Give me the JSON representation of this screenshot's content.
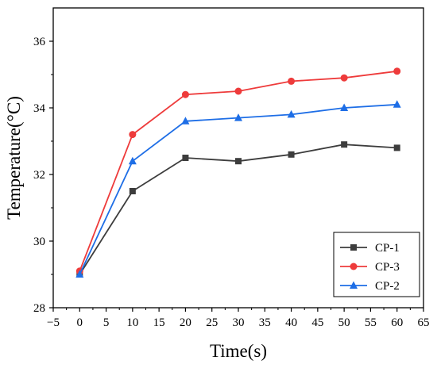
{
  "chart_data": {
    "type": "line",
    "xlabel": "Time(s)",
    "ylabel": "Temperature(°C)",
    "xlim": [
      -5,
      65
    ],
    "ylim": [
      28,
      37
    ],
    "x_ticks": [
      -5,
      0,
      5,
      10,
      15,
      20,
      25,
      30,
      35,
      40,
      45,
      50,
      55,
      60,
      65
    ],
    "y_ticks": [
      28,
      30,
      32,
      34,
      36
    ],
    "x_tick_labels": [
      "−5",
      "0",
      "5",
      "10",
      "15",
      "20",
      "25",
      "30",
      "35",
      "40",
      "45",
      "50",
      "55",
      "60",
      "65"
    ],
    "y_tick_labels": [
      "28",
      "30",
      "32",
      "34",
      "36"
    ],
    "x": [
      0,
      10,
      20,
      30,
      40,
      50,
      60
    ],
    "series": [
      {
        "name": "CP-1",
        "color": "#3d3d3d",
        "marker": "square",
        "values": [
          29.0,
          31.5,
          32.5,
          32.4,
          32.6,
          32.9,
          32.8
        ]
      },
      {
        "name": "CP-3",
        "color": "#ee3b3b",
        "marker": "circle",
        "values": [
          29.1,
          33.2,
          34.4,
          34.5,
          34.8,
          34.9,
          35.1
        ]
      },
      {
        "name": "CP-2",
        "color": "#1e6ee6",
        "marker": "triangle",
        "values": [
          29.0,
          32.4,
          33.6,
          33.7,
          33.8,
          34.0,
          34.1
        ]
      }
    ],
    "legend_position": "bottom-right",
    "grid": false
  }
}
